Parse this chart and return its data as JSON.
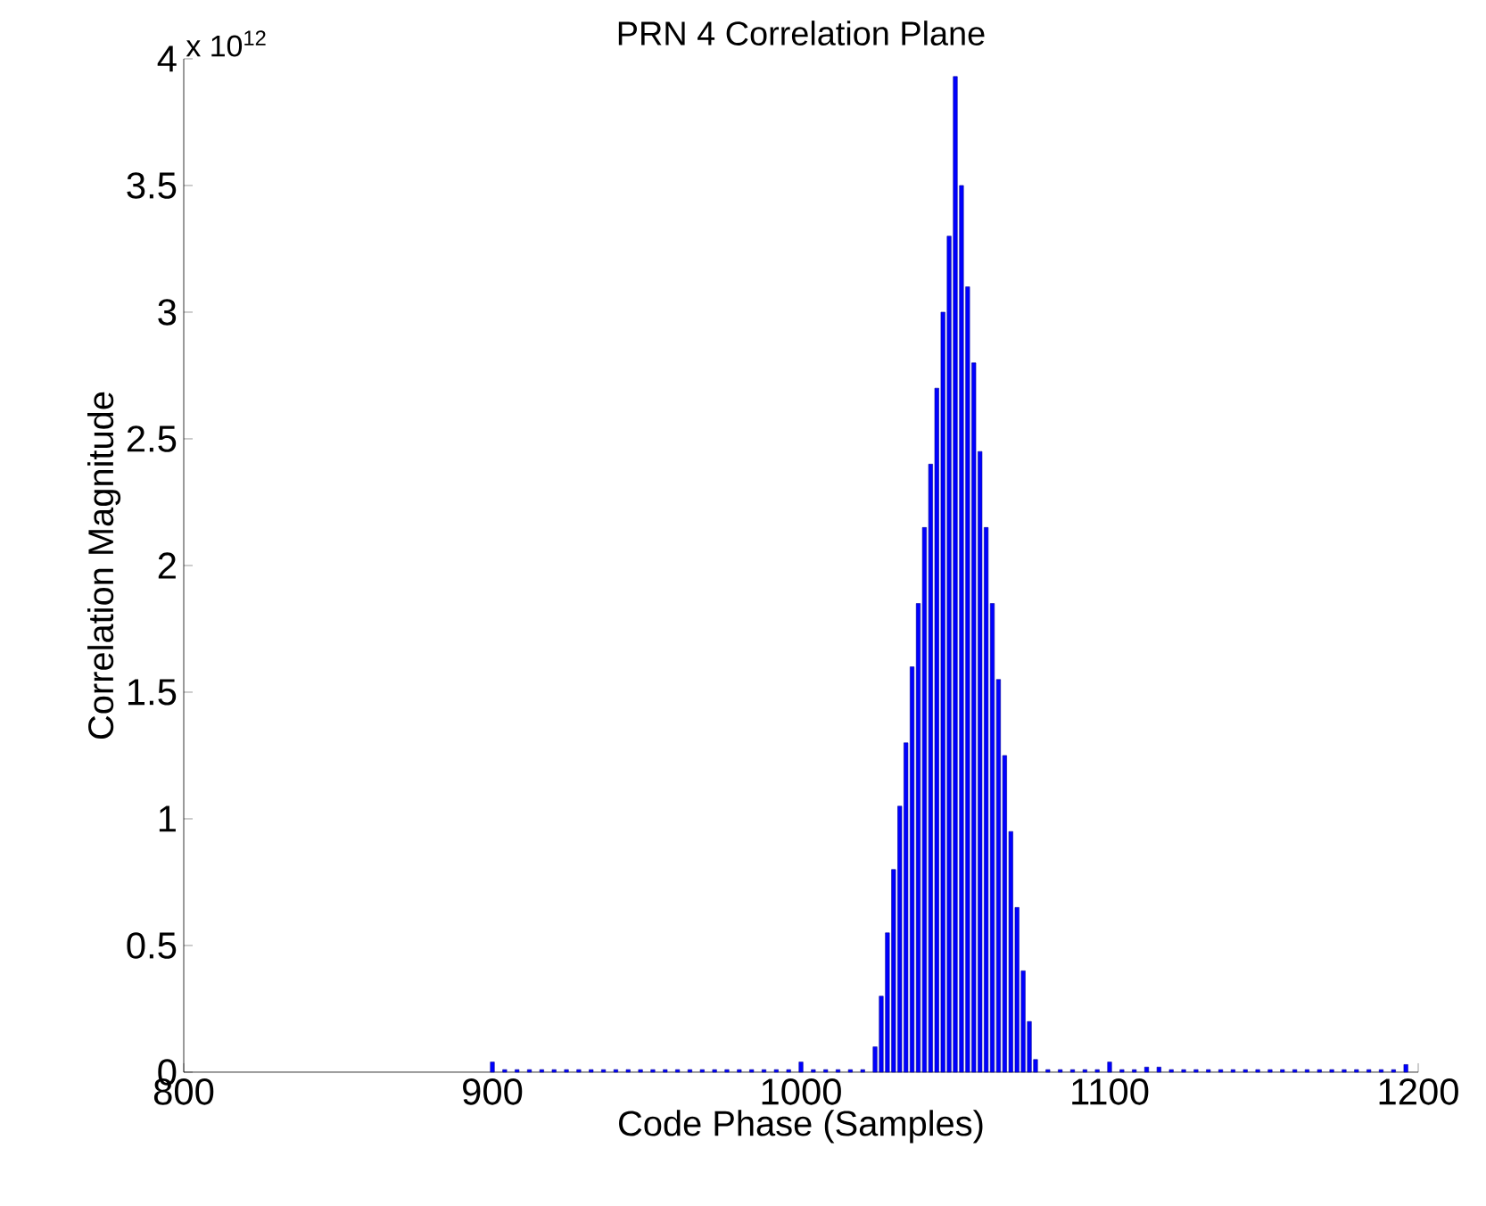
{
  "chart_data": {
    "type": "bar",
    "title": "PRN 4 Correlation Plane",
    "xlabel": "Code Phase (Samples)",
    "ylabel": "Correlation Magnitude",
    "annotations": [
      "x 10$^{12}$"
    ],
    "x": [
      900,
      904,
      908,
      912,
      916,
      920,
      924,
      928,
      932,
      936,
      940,
      944,
      948,
      952,
      956,
      960,
      964,
      968,
      972,
      976,
      980,
      984,
      988,
      992,
      996,
      1000,
      1004,
      1008,
      1012,
      1016,
      1020,
      1024,
      1026,
      1028,
      1030,
      1032,
      1034,
      1036,
      1038,
      1040,
      1042,
      1044,
      1046,
      1048,
      1050,
      1052,
      1054,
      1056,
      1058,
      1060,
      1062,
      1064,
      1066,
      1068,
      1070,
      1072,
      1074,
      1076,
      1080,
      1084,
      1088,
      1092,
      1096,
      1100,
      1104,
      1108,
      1112,
      1116,
      1120,
      1124,
      1128,
      1132,
      1136,
      1140,
      1144,
      1148,
      1152,
      1156,
      1160,
      1164,
      1168,
      1172,
      1176,
      1180,
      1184,
      1188,
      1192,
      1196
    ],
    "values": [
      0.04,
      0.01,
      0.01,
      0.01,
      0.01,
      0.01,
      0.01,
      0.01,
      0.01,
      0.01,
      0.01,
      0.01,
      0.01,
      0.01,
      0.01,
      0.01,
      0.01,
      0.01,
      0.01,
      0.01,
      0.01,
      0.01,
      0.01,
      0.01,
      0.01,
      0.04,
      0.01,
      0.01,
      0.01,
      0.01,
      0.01,
      0.1,
      0.3,
      0.55,
      0.8,
      1.05,
      1.3,
      1.6,
      1.85,
      2.15,
      2.4,
      2.7,
      3.0,
      3.3,
      3.93,
      3.5,
      3.1,
      2.8,
      2.45,
      2.15,
      1.85,
      1.55,
      1.25,
      0.95,
      0.65,
      0.4,
      0.2,
      0.05,
      0.01,
      0.01,
      0.01,
      0.01,
      0.01,
      0.04,
      0.01,
      0.01,
      0.02,
      0.02,
      0.01,
      0.01,
      0.01,
      0.01,
      0.01,
      0.01,
      0.01,
      0.01,
      0.01,
      0.01,
      0.01,
      0.01,
      0.01,
      0.01,
      0.01,
      0.01,
      0.01,
      0.01,
      0.01,
      0.03
    ],
    "color": "#0000ff",
    "xlim": [
      800,
      1200
    ],
    "xticks": [
      800,
      900,
      1000,
      1100,
      1200
    ],
    "ylim": [
      0,
      4
    ],
    "yticks": [
      0,
      0.5,
      1,
      1.5,
      2,
      2.5,
      3,
      3.5,
      4
    ]
  }
}
